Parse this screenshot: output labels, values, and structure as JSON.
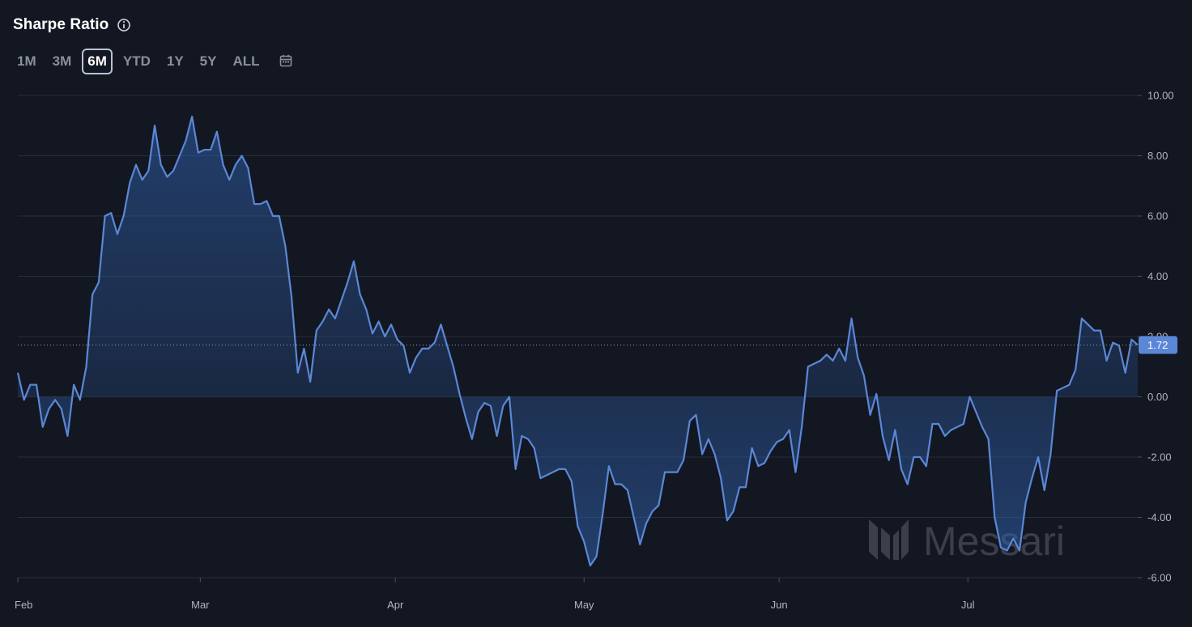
{
  "header": {
    "title": "Sharpe Ratio",
    "info_icon": "info-circle-icon"
  },
  "ranges": {
    "items": [
      "1M",
      "3M",
      "6M",
      "YTD",
      "1Y",
      "5Y",
      "ALL"
    ],
    "active": "6M",
    "calendar_icon": "calendar-icon"
  },
  "watermark": {
    "text": "Messari"
  },
  "colors": {
    "line": "#5b87d6",
    "background": "#131722",
    "grid": "#2a2e39",
    "badge": "#5b87d6"
  },
  "chart_data": {
    "type": "area",
    "title": "Sharpe Ratio",
    "xlabel": "",
    "ylabel": "",
    "ylim": [
      -6,
      10
    ],
    "yticks": [
      "10.00",
      "8.00",
      "6.00",
      "4.00",
      "2.00",
      "0.00",
      "-2.00",
      "-4.00",
      "-6.00"
    ],
    "x_tick_labels": [
      "Feb",
      "Mar",
      "Apr",
      "May",
      "Jun",
      "Jul"
    ],
    "x_range": [
      "2024-02-01",
      "2024-07-28"
    ],
    "last_value": 1.72,
    "last_value_label": "1.72",
    "grid": true,
    "series": [
      {
        "values": [
          0.8,
          -0.1,
          0.4,
          0.4,
          -1.0,
          -0.4,
          -0.1,
          -0.4,
          -1.3,
          0.4,
          -0.1,
          1.0,
          3.4,
          3.8,
          6.0,
          6.1,
          5.4,
          6.0,
          7.1,
          7.7,
          7.2,
          7.5,
          9.0,
          7.7,
          7.3,
          7.5,
          8.0,
          8.5,
          9.3,
          8.1,
          8.2,
          8.2,
          8.8,
          7.7,
          7.2,
          7.7,
          8.0,
          7.6,
          6.4,
          6.4,
          6.5,
          6.0,
          6.0,
          5.0,
          3.3,
          0.8,
          1.6,
          0.5,
          2.2,
          2.5,
          2.9,
          2.6,
          3.2,
          3.8,
          4.5,
          3.4,
          2.9,
          2.1,
          2.5,
          2.0,
          2.4,
          1.9,
          1.7,
          0.8,
          1.3,
          1.6,
          1.6,
          1.8,
          2.4,
          1.7,
          1.0,
          0.1,
          -0.7,
          -1.4,
          -0.5,
          -0.2,
          -0.3,
          -1.3,
          -0.3,
          0.0,
          -2.4,
          -1.3,
          -1.4,
          -1.7,
          -2.7,
          -2.6,
          -2.5,
          -2.4,
          -2.4,
          -2.8,
          -4.3,
          -4.8,
          -5.6,
          -5.3,
          -3.9,
          -2.3,
          -2.9,
          -2.9,
          -3.1,
          -4.0,
          -4.9,
          -4.2,
          -3.8,
          -3.6,
          -2.5,
          -2.5,
          -2.5,
          -2.1,
          -0.8,
          -0.6,
          -1.9,
          -1.4,
          -1.9,
          -2.7,
          -4.1,
          -3.8,
          -3.0,
          -3.0,
          -1.7,
          -2.3,
          -2.2,
          -1.8,
          -1.5,
          -1.4,
          -1.1,
          -2.5,
          -1.0,
          1.0,
          1.1,
          1.2,
          1.4,
          1.2,
          1.6,
          1.2,
          2.6,
          1.3,
          0.7,
          -0.6,
          0.1,
          -1.3,
          -2.1,
          -1.1,
          -2.4,
          -2.9,
          -2.0,
          -2.0,
          -2.3,
          -0.9,
          -0.9,
          -1.3,
          -1.1,
          -1.0,
          -0.9,
          0.0,
          -0.5,
          -1.0,
          -1.4,
          -4.0,
          -5.0,
          -5.1,
          -4.7,
          -5.1,
          -3.5,
          -2.7,
          -2.0,
          -3.1,
          -1.9,
          0.2,
          0.3,
          0.4,
          0.9,
          2.6,
          2.4,
          2.2,
          2.2,
          1.2,
          1.8,
          1.7,
          0.8,
          1.9,
          1.72
        ]
      }
    ]
  }
}
